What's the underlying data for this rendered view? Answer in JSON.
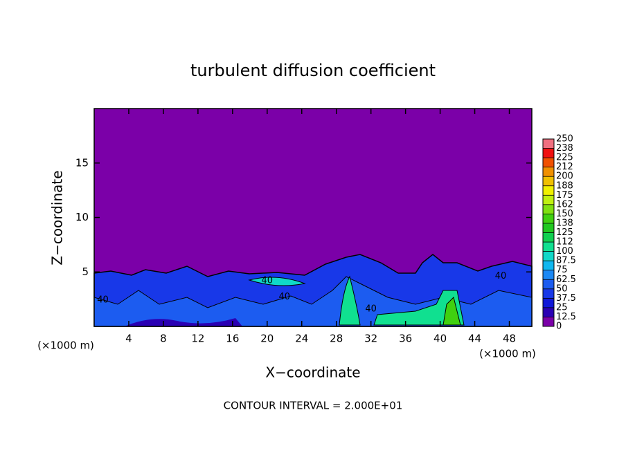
{
  "chart_data": {
    "type": "contour",
    "title": "turbulent diffusion coefficient",
    "xlabel": "X−coordinate",
    "ylabel": "Z−coordinate",
    "x_unit_label": "(×1000 m)",
    "x_unit_label_right": "(×1000 m)",
    "footnote": "CONTOUR INTERVAL = 2.000E+01",
    "xlim": [
      0,
      50.6
    ],
    "ylim": [
      0,
      20
    ],
    "xticks": [
      4,
      8,
      12,
      16,
      20,
      24,
      28,
      32,
      36,
      40,
      44,
      48
    ],
    "yticks": [
      5,
      10,
      15
    ],
    "contour_labels": [
      {
        "x": 20,
        "z": 4.2,
        "value": 40
      },
      {
        "x": 22,
        "z": 2.7,
        "value": 40
      },
      {
        "x": 32,
        "z": 1.6,
        "value": 40
      },
      {
        "x": 47,
        "z": 4.6,
        "value": 40
      },
      {
        "x": 1,
        "z": 2.4,
        "value": 40
      }
    ],
    "colorbar": {
      "levels": [
        0,
        12.5,
        25,
        37.5,
        50,
        62.5,
        75,
        87.5,
        100,
        {
          "value": 112.5,
          "label": "112"
        },
        125,
        {
          "value": 137.5,
          "label": "138"
        },
        150,
        {
          "value": 162.5,
          "label": "162"
        },
        175,
        {
          "value": 187.5,
          "label": "188"
        },
        200,
        {
          "value": 212.5,
          "label": "212"
        },
        225,
        {
          "value": 237.5,
          "label": "238"
        },
        250
      ],
      "colors": [
        "#7b00a8",
        "#2a00b4",
        "#1018d8",
        "#1838e8",
        "#1c5cf0",
        "#1c88f4",
        "#10b8f0",
        "#10d8c8",
        "#10e090",
        "#10d050",
        "#20c820",
        "#40d010",
        "#80e010",
        "#c0f010",
        "#f0f000",
        "#f0c000",
        "#f09000",
        "#f05000",
        "#f01010",
        "#f07080"
      ]
    }
  }
}
